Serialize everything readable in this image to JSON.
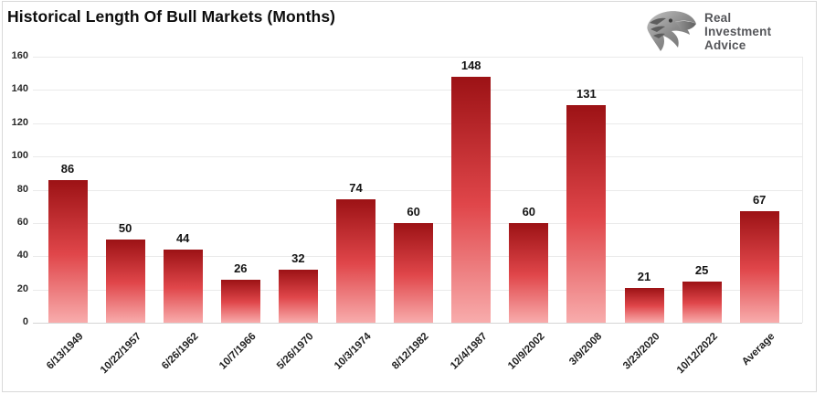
{
  "title": "Historical Length Of Bull Markets (Months)",
  "logo": {
    "icon": "eagle-icon",
    "lines": [
      "Real",
      "Investment",
      "Advice"
    ]
  },
  "colors": {
    "bar_top": "#9c1215",
    "bar_mid": "#e0464a",
    "bar_bottom": "#f8acac",
    "grid": "#eaeaea",
    "axis_line": "#d6d6d6",
    "value_label": "#141414",
    "axis_label": "#2b2b2b",
    "logo_text": "#55565a",
    "frame_border": "#d9d9d9"
  },
  "chart_data": {
    "type": "bar",
    "title": "Historical Length Of Bull Markets (Months)",
    "categories": [
      "6/13/1949",
      "10/22/1957",
      "6/26/1962",
      "10/7/1966",
      "5/26/1970",
      "10/3/1974",
      "8/12/1982",
      "12/4/1987",
      "10/9/2002",
      "3/9/2008",
      "3/23/2020",
      "10/12/2022",
      "Average"
    ],
    "values": [
      86,
      50,
      44,
      26,
      32,
      74,
      60,
      148,
      60,
      131,
      21,
      25,
      67
    ],
    "xlabel": "",
    "ylabel": "",
    "ylim": [
      0,
      160
    ],
    "yticks": [
      0,
      20,
      40,
      60,
      80,
      100,
      120,
      140,
      160
    ],
    "grid": true,
    "legend": false,
    "bar_labels": true,
    "bar_gradient": "dark-red-top to light-pink-bottom"
  }
}
